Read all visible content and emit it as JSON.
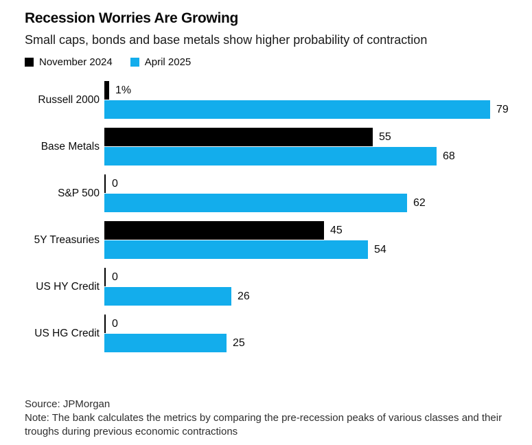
{
  "header": {
    "title": "Recession Worries Are Growing",
    "subtitle": "Small caps, bonds and base metals show higher probability of contraction"
  },
  "legend": [
    {
      "label": "November 2024",
      "color": "#000000"
    },
    {
      "label": "April 2025",
      "color": "#13adec"
    }
  ],
  "chart_data": {
    "type": "bar",
    "orientation": "horizontal",
    "title": "Recession Worries Are Growing",
    "subtitle": "Small caps, bonds and base metals show higher probability of contraction",
    "categories": [
      "Russell 2000",
      "Base Metals",
      "S&P 500",
      "5Y Treasuries",
      "US HY Credit",
      "US HG Credit"
    ],
    "series": [
      {
        "name": "November 2024",
        "color": "#000000",
        "values": [
          1,
          55,
          0,
          45,
          0,
          0
        ],
        "labels": [
          "1%",
          "55",
          "0",
          "45",
          "0",
          "0"
        ]
      },
      {
        "name": "April 2025",
        "color": "#13adec",
        "values": [
          79,
          68,
          62,
          54,
          26,
          25
        ],
        "labels": [
          "79",
          "68",
          "62",
          "54",
          "26",
          "25"
        ]
      }
    ],
    "xlim": [
      0,
      79
    ],
    "grid": false,
    "legend_position": "top-left",
    "unit": "probability %"
  },
  "footer": {
    "source": "Source: JPMorgan",
    "note": "Note: The bank calculates the metrics by comparing the pre-recession peaks of various classes and their troughs during previous economic contractions"
  }
}
